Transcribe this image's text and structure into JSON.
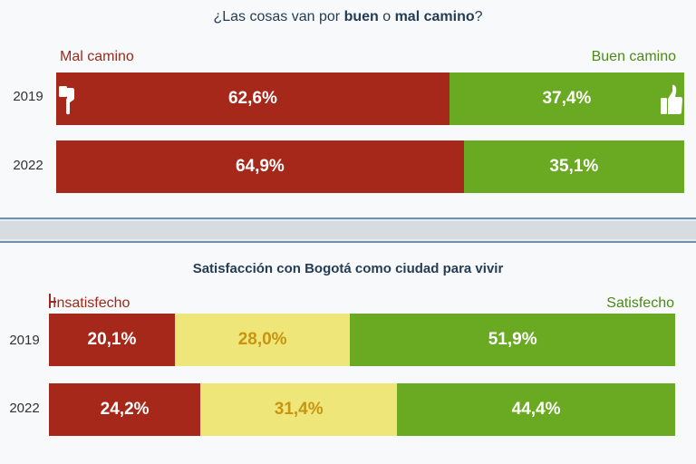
{
  "chart_data": [
    {
      "type": "bar",
      "orientation": "horizontal-stacked-100",
      "title_parts": [
        "¿Las cosas van por ",
        "buen",
        " o ",
        "mal camino",
        "?"
      ],
      "legend_left": "Mal camino",
      "legend_right": "Buen camino",
      "categories": [
        "2019",
        "2022"
      ],
      "series": [
        {
          "name": "Mal camino",
          "color": "#a6281a",
          "values": [
            62.6,
            64.9
          ],
          "labels": [
            "62,6%",
            "64,9%"
          ]
        },
        {
          "name": "Buen camino",
          "color": "#6aa922",
          "values": [
            37.4,
            35.1
          ],
          "labels": [
            "37,4%",
            "35,1%"
          ]
        }
      ],
      "icons": [
        "thumbs-down-icon",
        "thumbs-up-icon"
      ]
    },
    {
      "type": "bar",
      "orientation": "horizontal-stacked-100",
      "title": "Satisfacción con Bogotá como ciudad para vivir",
      "legend_left": "Insatisfecho",
      "legend_right": "Satisfecho",
      "categories": [
        "2019",
        "2022"
      ],
      "series": [
        {
          "name": "Insatisfecho",
          "color": "#a6281a",
          "values": [
            20.1,
            24.2
          ],
          "labels": [
            "20,1%",
            "24,2%"
          ]
        },
        {
          "color": "#efe67a",
          "values": [
            28.0,
            31.4
          ],
          "labels": [
            "28,0%",
            "31,4%"
          ]
        },
        {
          "name": "Satisfecho",
          "color": "#6aa922",
          "values": [
            51.9,
            44.4
          ],
          "labels": [
            "51,9%",
            "44,4%"
          ]
        }
      ]
    }
  ]
}
